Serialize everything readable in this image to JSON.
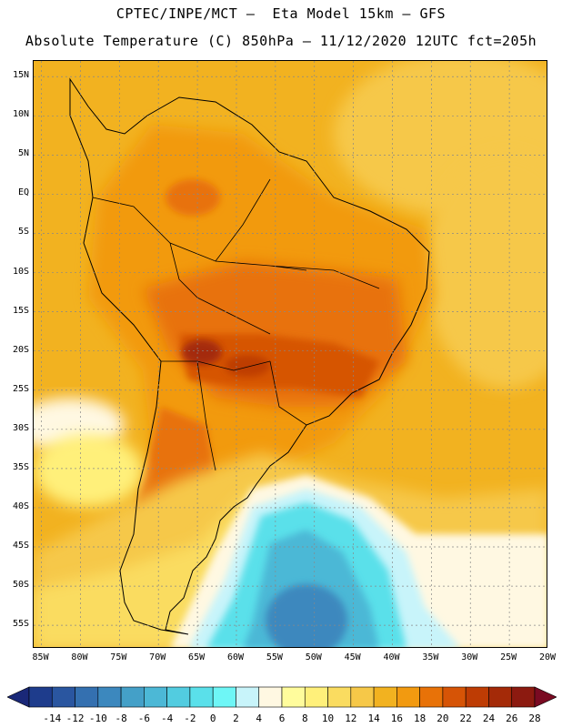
{
  "title": {
    "line1": "CPTEC/INPE/MCT –  Eta Model 15km – GFS",
    "line2": "Absolute Temperature (C) 850hPa – 11/12/2020 12UTC fct=205h"
  },
  "map": {
    "lat_labels": [
      "15N",
      "10N",
      "5N",
      "EQ",
      "5S",
      "10S",
      "15S",
      "20S",
      "25S",
      "30S",
      "35S",
      "40S",
      "45S",
      "50S",
      "55S"
    ],
    "lon_labels": [
      "85W",
      "80W",
      "75W",
      "70W",
      "65W",
      "60W",
      "55W",
      "50W",
      "45W",
      "40W",
      "35W",
      "30W",
      "25W",
      "20W"
    ],
    "lat_range": [
      17,
      -58
    ],
    "lon_range": [
      -86,
      -20
    ],
    "grid_lines": true
  },
  "colorbar": {
    "labels": [
      "-14",
      "-12",
      "-10",
      "-8",
      "-6",
      "-4",
      "-2",
      "0",
      "2",
      "4",
      "6",
      "8",
      "10",
      "12",
      "14",
      "16",
      "18",
      "20",
      "22",
      "24",
      "26",
      "28"
    ],
    "colors": [
      "#1e3c8c",
      "#2a56a0",
      "#3470b0",
      "#3c88be",
      "#44a0c8",
      "#4cb8d6",
      "#52cce0",
      "#5ae0ea",
      "#6ef6f6",
      "#c8f4fa",
      "#fff8e2",
      "#fffc9c",
      "#fff07a",
      "#fadc60",
      "#f6c848",
      "#f2b220",
      "#f29a10",
      "#e87208",
      "#d65406",
      "#be3c04",
      "#a42a08",
      "#8c1a10"
    ],
    "under_color": "#1a2878",
    "over_color": "#7a0a22"
  }
}
